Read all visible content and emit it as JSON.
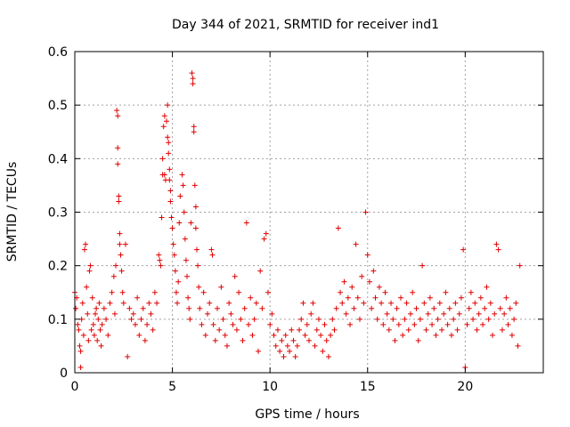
{
  "chart_data": {
    "type": "scatter",
    "title": "Day 344 of 2021, SRMTID for receiver ind1",
    "xlabel": "GPS time / hours",
    "ylabel": "SRMTID / TECUs",
    "xlim": [
      0,
      24
    ],
    "ylim": [
      0,
      0.6
    ],
    "xticks": [
      0,
      5,
      10,
      15,
      20
    ],
    "yticks": [
      0,
      0.1,
      0.2,
      0.3,
      0.4,
      0.5,
      0.6
    ],
    "xtick_labels": [
      "0",
      "5",
      "10",
      "15",
      "20"
    ],
    "ytick_labels": [
      "0",
      "0.1",
      "0.2",
      "0.3",
      "0.4",
      "0.5",
      "0.6"
    ],
    "grid": true,
    "marker": "+",
    "color": "#e00000",
    "series": [
      {
        "name": "ind1",
        "points": [
          [
            0.0,
            0.15
          ],
          [
            0.05,
            0.12
          ],
          [
            0.1,
            0.14
          ],
          [
            0.15,
            0.09
          ],
          [
            0.2,
            0.08
          ],
          [
            0.25,
            0.05
          ],
          [
            0.3,
            0.04
          ],
          [
            0.3,
            0.01
          ],
          [
            0.35,
            0.1
          ],
          [
            0.4,
            0.13
          ],
          [
            0.45,
            0.07
          ],
          [
            0.5,
            0.23
          ],
          [
            0.55,
            0.24
          ],
          [
            0.6,
            0.16
          ],
          [
            0.65,
            0.11
          ],
          [
            0.7,
            0.06
          ],
          [
            0.75,
            0.19
          ],
          [
            0.8,
            0.2
          ],
          [
            0.85,
            0.08
          ],
          [
            0.9,
            0.14
          ],
          [
            0.95,
            0.09
          ],
          [
            1.0,
            0.07
          ],
          [
            1.05,
            0.11
          ],
          [
            1.1,
            0.12
          ],
          [
            1.15,
            0.06
          ],
          [
            1.2,
            0.1
          ],
          [
            1.25,
            0.13
          ],
          [
            1.3,
            0.08
          ],
          [
            1.35,
            0.05
          ],
          [
            1.4,
            0.09
          ],
          [
            1.5,
            0.12
          ],
          [
            1.6,
            0.1
          ],
          [
            1.7,
            0.07
          ],
          [
            1.8,
            0.13
          ],
          [
            1.9,
            0.15
          ],
          [
            2.0,
            0.18
          ],
          [
            2.05,
            0.11
          ],
          [
            2.1,
            0.2
          ],
          [
            2.15,
            0.49
          ],
          [
            2.2,
            0.48
          ],
          [
            2.2,
            0.42
          ],
          [
            2.2,
            0.39
          ],
          [
            2.25,
            0.33
          ],
          [
            2.25,
            0.32
          ],
          [
            2.3,
            0.26
          ],
          [
            2.3,
            0.24
          ],
          [
            2.35,
            0.22
          ],
          [
            2.4,
            0.19
          ],
          [
            2.45,
            0.15
          ],
          [
            2.5,
            0.13
          ],
          [
            2.6,
            0.24
          ],
          [
            2.7,
            0.03
          ],
          [
            2.8,
            0.12
          ],
          [
            2.9,
            0.1
          ],
          [
            3.0,
            0.11
          ],
          [
            3.1,
            0.09
          ],
          [
            3.2,
            0.14
          ],
          [
            3.3,
            0.07
          ],
          [
            3.4,
            0.1
          ],
          [
            3.5,
            0.12
          ],
          [
            3.6,
            0.06
          ],
          [
            3.7,
            0.09
          ],
          [
            3.8,
            0.13
          ],
          [
            3.9,
            0.11
          ],
          [
            4.0,
            0.08
          ],
          [
            4.1,
            0.15
          ],
          [
            4.2,
            0.13
          ],
          [
            4.3,
            0.22
          ],
          [
            4.35,
            0.21
          ],
          [
            4.4,
            0.2
          ],
          [
            4.45,
            0.29
          ],
          [
            4.5,
            0.37
          ],
          [
            4.5,
            0.4
          ],
          [
            4.55,
            0.46
          ],
          [
            4.6,
            0.48
          ],
          [
            4.6,
            0.37
          ],
          [
            4.65,
            0.36
          ],
          [
            4.7,
            0.47
          ],
          [
            4.75,
            0.5
          ],
          [
            4.75,
            0.44
          ],
          [
            4.8,
            0.43
          ],
          [
            4.8,
            0.41
          ],
          [
            4.85,
            0.38
          ],
          [
            4.85,
            0.36
          ],
          [
            4.9,
            0.34
          ],
          [
            4.9,
            0.32
          ],
          [
            4.95,
            0.29
          ],
          [
            5.0,
            0.27
          ],
          [
            5.05,
            0.24
          ],
          [
            5.1,
            0.22
          ],
          [
            5.15,
            0.19
          ],
          [
            5.2,
            0.15
          ],
          [
            5.25,
            0.13
          ],
          [
            5.3,
            0.17
          ],
          [
            5.35,
            0.28
          ],
          [
            5.4,
            0.33
          ],
          [
            5.5,
            0.37
          ],
          [
            5.55,
            0.35
          ],
          [
            5.6,
            0.3
          ],
          [
            5.65,
            0.25
          ],
          [
            5.7,
            0.21
          ],
          [
            5.75,
            0.18
          ],
          [
            5.8,
            0.14
          ],
          [
            5.85,
            0.12
          ],
          [
            5.9,
            0.1
          ],
          [
            5.95,
            0.28
          ],
          [
            6.0,
            0.56
          ],
          [
            6.05,
            0.55
          ],
          [
            6.05,
            0.54
          ],
          [
            6.1,
            0.46
          ],
          [
            6.1,
            0.45
          ],
          [
            6.15,
            0.35
          ],
          [
            6.2,
            0.31
          ],
          [
            6.2,
            0.27
          ],
          [
            6.25,
            0.23
          ],
          [
            6.3,
            0.2
          ],
          [
            6.35,
            0.16
          ],
          [
            6.4,
            0.12
          ],
          [
            6.5,
            0.09
          ],
          [
            6.6,
            0.15
          ],
          [
            6.7,
            0.07
          ],
          [
            6.8,
            0.11
          ],
          [
            6.9,
            0.13
          ],
          [
            7.0,
            0.23
          ],
          [
            7.05,
            0.22
          ],
          [
            7.1,
            0.09
          ],
          [
            7.2,
            0.06
          ],
          [
            7.3,
            0.12
          ],
          [
            7.4,
            0.08
          ],
          [
            7.5,
            0.16
          ],
          [
            7.6,
            0.1
          ],
          [
            7.7,
            0.07
          ],
          [
            7.8,
            0.05
          ],
          [
            7.9,
            0.13
          ],
          [
            8.0,
            0.11
          ],
          [
            8.1,
            0.09
          ],
          [
            8.2,
            0.18
          ],
          [
            8.3,
            0.08
          ],
          [
            8.4,
            0.15
          ],
          [
            8.5,
            0.1
          ],
          [
            8.6,
            0.06
          ],
          [
            8.7,
            0.12
          ],
          [
            8.8,
            0.28
          ],
          [
            8.9,
            0.09
          ],
          [
            9.0,
            0.14
          ],
          [
            9.1,
            0.07
          ],
          [
            9.2,
            0.1
          ],
          [
            9.3,
            0.13
          ],
          [
            9.4,
            0.04
          ],
          [
            9.5,
            0.19
          ],
          [
            9.6,
            0.12
          ],
          [
            9.7,
            0.25
          ],
          [
            9.8,
            0.26
          ],
          [
            9.9,
            0.15
          ],
          [
            10.0,
            0.09
          ],
          [
            10.1,
            0.11
          ],
          [
            10.2,
            0.07
          ],
          [
            10.3,
            0.05
          ],
          [
            10.4,
            0.08
          ],
          [
            10.5,
            0.04
          ],
          [
            10.6,
            0.06
          ],
          [
            10.7,
            0.03
          ],
          [
            10.8,
            0.07
          ],
          [
            10.9,
            0.05
          ],
          [
            11.0,
            0.04
          ],
          [
            11.1,
            0.08
          ],
          [
            11.2,
            0.06
          ],
          [
            11.3,
            0.03
          ],
          [
            11.4,
            0.05
          ],
          [
            11.5,
            0.08
          ],
          [
            11.6,
            0.1
          ],
          [
            11.7,
            0.13
          ],
          [
            11.8,
            0.07
          ],
          [
            11.9,
            0.09
          ],
          [
            12.0,
            0.06
          ],
          [
            12.1,
            0.11
          ],
          [
            12.2,
            0.13
          ],
          [
            12.3,
            0.05
          ],
          [
            12.4,
            0.08
          ],
          [
            12.5,
            0.1
          ],
          [
            12.6,
            0.07
          ],
          [
            12.7,
            0.04
          ],
          [
            12.8,
            0.09
          ],
          [
            12.9,
            0.06
          ],
          [
            13.0,
            0.03
          ],
          [
            13.1,
            0.07
          ],
          [
            13.2,
            0.1
          ],
          [
            13.3,
            0.08
          ],
          [
            13.4,
            0.12
          ],
          [
            13.5,
            0.27
          ],
          [
            13.6,
            0.15
          ],
          [
            13.7,
            0.13
          ],
          [
            13.8,
            0.17
          ],
          [
            13.9,
            0.11
          ],
          [
            14.0,
            0.14
          ],
          [
            14.1,
            0.09
          ],
          [
            14.2,
            0.16
          ],
          [
            14.3,
            0.12
          ],
          [
            14.4,
            0.24
          ],
          [
            14.5,
            0.14
          ],
          [
            14.6,
            0.1
          ],
          [
            14.7,
            0.18
          ],
          [
            14.8,
            0.13
          ],
          [
            14.9,
            0.3
          ],
          [
            15.0,
            0.22
          ],
          [
            15.1,
            0.17
          ],
          [
            15.2,
            0.12
          ],
          [
            15.3,
            0.19
          ],
          [
            15.4,
            0.14
          ],
          [
            15.5,
            0.1
          ],
          [
            15.6,
            0.16
          ],
          [
            15.7,
            0.13
          ],
          [
            15.8,
            0.09
          ],
          [
            15.9,
            0.15
          ],
          [
            16.0,
            0.11
          ],
          [
            16.1,
            0.08
          ],
          [
            16.2,
            0.13
          ],
          [
            16.3,
            0.1
          ],
          [
            16.4,
            0.06
          ],
          [
            16.5,
            0.12
          ],
          [
            16.6,
            0.09
          ],
          [
            16.7,
            0.14
          ],
          [
            16.8,
            0.07
          ],
          [
            16.9,
            0.1
          ],
          [
            17.0,
            0.13
          ],
          [
            17.1,
            0.08
          ],
          [
            17.2,
            0.11
          ],
          [
            17.3,
            0.15
          ],
          [
            17.4,
            0.09
          ],
          [
            17.5,
            0.12
          ],
          [
            17.6,
            0.06
          ],
          [
            17.7,
            0.1
          ],
          [
            17.8,
            0.2
          ],
          [
            17.9,
            0.13
          ],
          [
            18.0,
            0.08
          ],
          [
            18.1,
            0.11
          ],
          [
            18.2,
            0.14
          ],
          [
            18.3,
            0.09
          ],
          [
            18.4,
            0.12
          ],
          [
            18.5,
            0.07
          ],
          [
            18.6,
            0.1
          ],
          [
            18.7,
            0.13
          ],
          [
            18.8,
            0.08
          ],
          [
            18.9,
            0.11
          ],
          [
            19.0,
            0.15
          ],
          [
            19.1,
            0.09
          ],
          [
            19.2,
            0.12
          ],
          [
            19.3,
            0.07
          ],
          [
            19.4,
            0.1
          ],
          [
            19.5,
            0.13
          ],
          [
            19.6,
            0.08
          ],
          [
            19.7,
            0.11
          ],
          [
            19.8,
            0.14
          ],
          [
            19.9,
            0.23
          ],
          [
            20.0,
            0.01
          ],
          [
            20.1,
            0.09
          ],
          [
            20.2,
            0.12
          ],
          [
            20.3,
            0.15
          ],
          [
            20.4,
            0.1
          ],
          [
            20.5,
            0.13
          ],
          [
            20.6,
            0.08
          ],
          [
            20.7,
            0.11
          ],
          [
            20.8,
            0.14
          ],
          [
            20.9,
            0.09
          ],
          [
            21.0,
            0.12
          ],
          [
            21.1,
            0.16
          ],
          [
            21.2,
            0.1
          ],
          [
            21.3,
            0.13
          ],
          [
            21.4,
            0.07
          ],
          [
            21.5,
            0.11
          ],
          [
            21.6,
            0.24
          ],
          [
            21.7,
            0.23
          ],
          [
            21.8,
            0.12
          ],
          [
            21.9,
            0.08
          ],
          [
            22.0,
            0.11
          ],
          [
            22.1,
            0.14
          ],
          [
            22.2,
            0.09
          ],
          [
            22.3,
            0.12
          ],
          [
            22.4,
            0.07
          ],
          [
            22.5,
            0.1
          ],
          [
            22.6,
            0.13
          ],
          [
            22.7,
            0.05
          ],
          [
            22.8,
            0.2
          ]
        ]
      }
    ]
  }
}
